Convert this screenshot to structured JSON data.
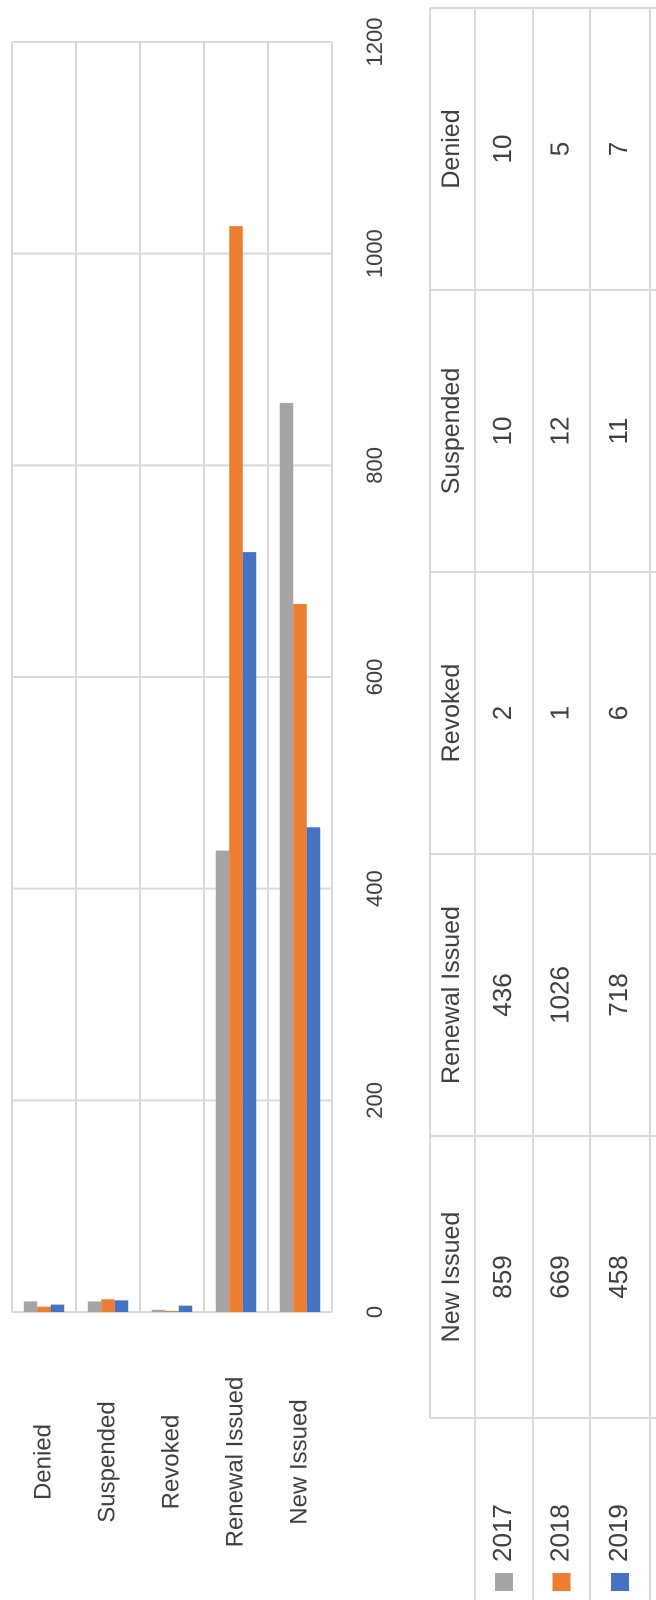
{
  "chart_data": {
    "type": "bar",
    "categories": [
      "New Issued",
      "Renewal Issued",
      "Revoked",
      "Suspended",
      "Denied"
    ],
    "series": [
      {
        "name": "2017",
        "color": "#a5a5a5",
        "values": [
          859,
          436,
          2,
          10,
          10
        ]
      },
      {
        "name": "2018",
        "color": "#ed7d31",
        "values": [
          669,
          1026,
          1,
          12,
          5
        ]
      },
      {
        "name": "2019",
        "color": "#4472c4",
        "values": [
          458,
          718,
          6,
          11,
          7
        ]
      }
    ],
    "ylim": [
      0,
      1200
    ],
    "yticks": [
      0,
      200,
      400,
      600,
      800,
      1000,
      1200
    ],
    "grid": true,
    "data_table": true
  }
}
